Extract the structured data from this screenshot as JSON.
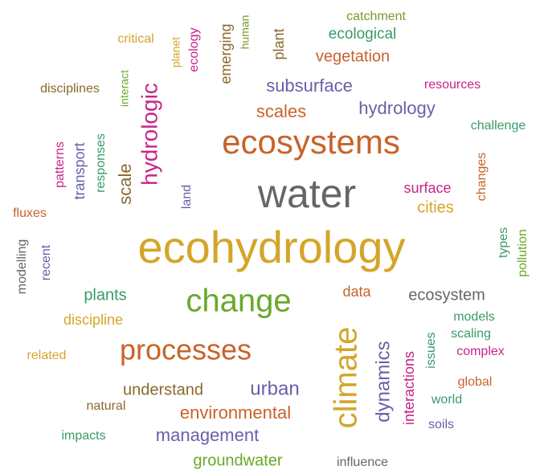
{
  "words": [
    "catchment",
    "critical",
    "planet",
    "ecology",
    "emerging",
    "human",
    "plant",
    "ecological",
    "vegetation",
    "disciplines",
    "interact",
    "hydrologic",
    "subsurface",
    "resources",
    "scales",
    "hydrology",
    "challenge",
    "patterns",
    "transport",
    "responses",
    "scale",
    "ecosystems",
    "changes",
    "land",
    "water",
    "surface",
    "cities",
    "fluxes",
    "ecohydrology",
    "modelling",
    "recent",
    "types",
    "pollution",
    "plants",
    "change",
    "data",
    "ecosystem",
    "discipline",
    "models",
    "climate",
    "dynamics",
    "issues",
    "scaling",
    "complex",
    "related",
    "processes",
    "interactions",
    "global",
    "understand",
    "urban",
    "world",
    "natural",
    "environmental",
    "soils",
    "impacts",
    "management",
    "groundwater",
    "influence"
  ]
}
